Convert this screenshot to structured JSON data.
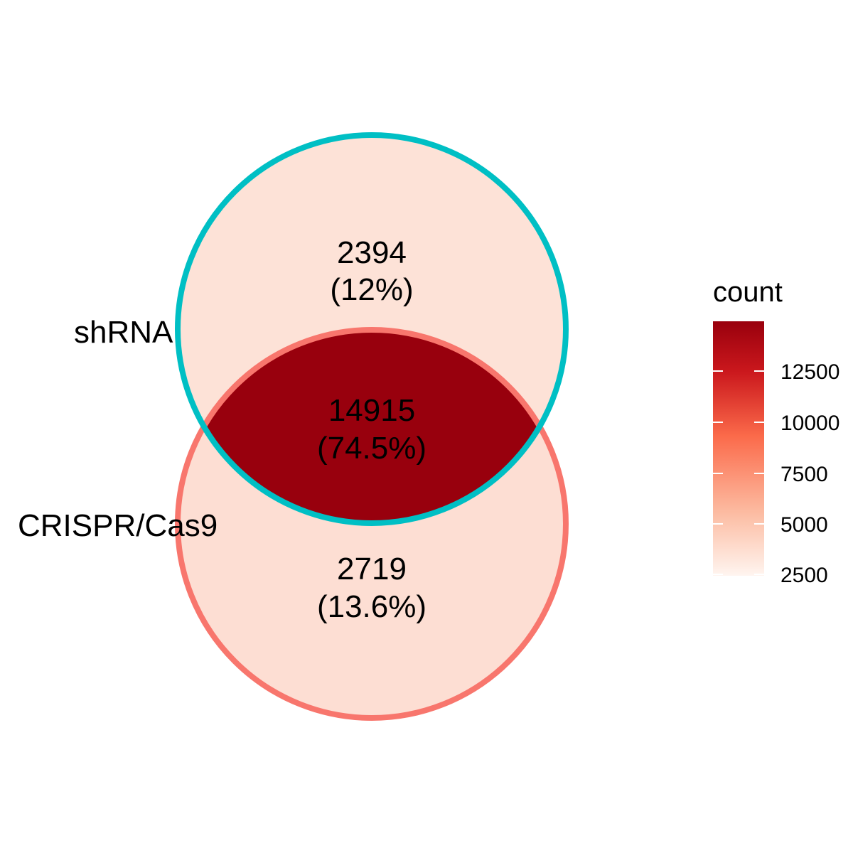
{
  "venn": {
    "sets": [
      {
        "name": "shRNA",
        "stroke": "#00BFC4"
      },
      {
        "name": "CRISPR/Cas9",
        "stroke": "#F8766D"
      }
    ],
    "regions": [
      {
        "id": "shRNA_only",
        "count": "2394",
        "percent": "(12%)",
        "value": 2394,
        "fill": "#FDE2D7"
      },
      {
        "id": "intersection",
        "count": "14915",
        "percent": "(74.5%)",
        "value": 14915,
        "fill": "#98000D"
      },
      {
        "id": "crispr_only",
        "count": "2719",
        "percent": "(13.6%)",
        "value": 2719,
        "fill": "#FDDED3"
      }
    ]
  },
  "legend": {
    "title": "count",
    "gradient": {
      "low": "#FFF5F0",
      "mid": "#FB6A4A",
      "high": "#99000D"
    },
    "ticks": [
      "12500",
      "10000",
      "7500",
      "5000",
      "2500"
    ]
  }
}
